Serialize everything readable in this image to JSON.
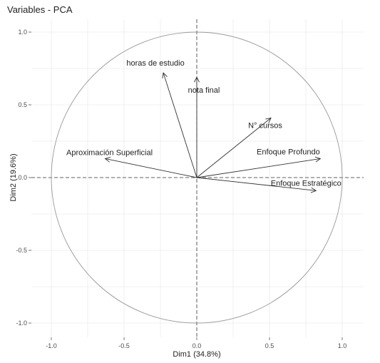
{
  "chart_data": {
    "type": "scatter",
    "subtype": "pca-correlation-circle",
    "title": "Variables - PCA",
    "xlabel": "Dim1 (34.8%)",
    "ylabel": "Dim2 (19.6%)",
    "xlim": [
      -1.0,
      1.0
    ],
    "ylim": [
      -1.0,
      1.0
    ],
    "x_ticks": [
      -1.0,
      -0.5,
      0.0,
      0.5,
      1.0
    ],
    "y_ticks": [
      -1.0,
      -0.5,
      0.0,
      0.5,
      1.0
    ],
    "x_tick_labels": [
      "-1.0",
      "-0.5",
      "0.0",
      "0.5",
      "1.0"
    ],
    "y_tick_labels": [
      "-1.0",
      "-0.5",
      "0.0",
      "0.5",
      "1.0"
    ],
    "grid": true,
    "unit_circle": true,
    "variables": [
      {
        "name": "horas de estudio",
        "x": -0.23,
        "y": 0.72
      },
      {
        "name": "nota final",
        "x": 0.0,
        "y": 0.69
      },
      {
        "name": "N° cursos",
        "x": 0.51,
        "y": 0.41
      },
      {
        "name": "Aproximación  Superficial",
        "x": -0.63,
        "y": 0.13
      },
      {
        "name": "Enfoque Profundo",
        "x": 0.85,
        "y": 0.13
      },
      {
        "name": "Enfoque Estratégico",
        "x": 0.82,
        "y": -0.09
      }
    ],
    "colors": {
      "arrow": "#333333",
      "circle": "#999999",
      "grid": "#ebebeb",
      "zero_line": "#333333"
    }
  }
}
